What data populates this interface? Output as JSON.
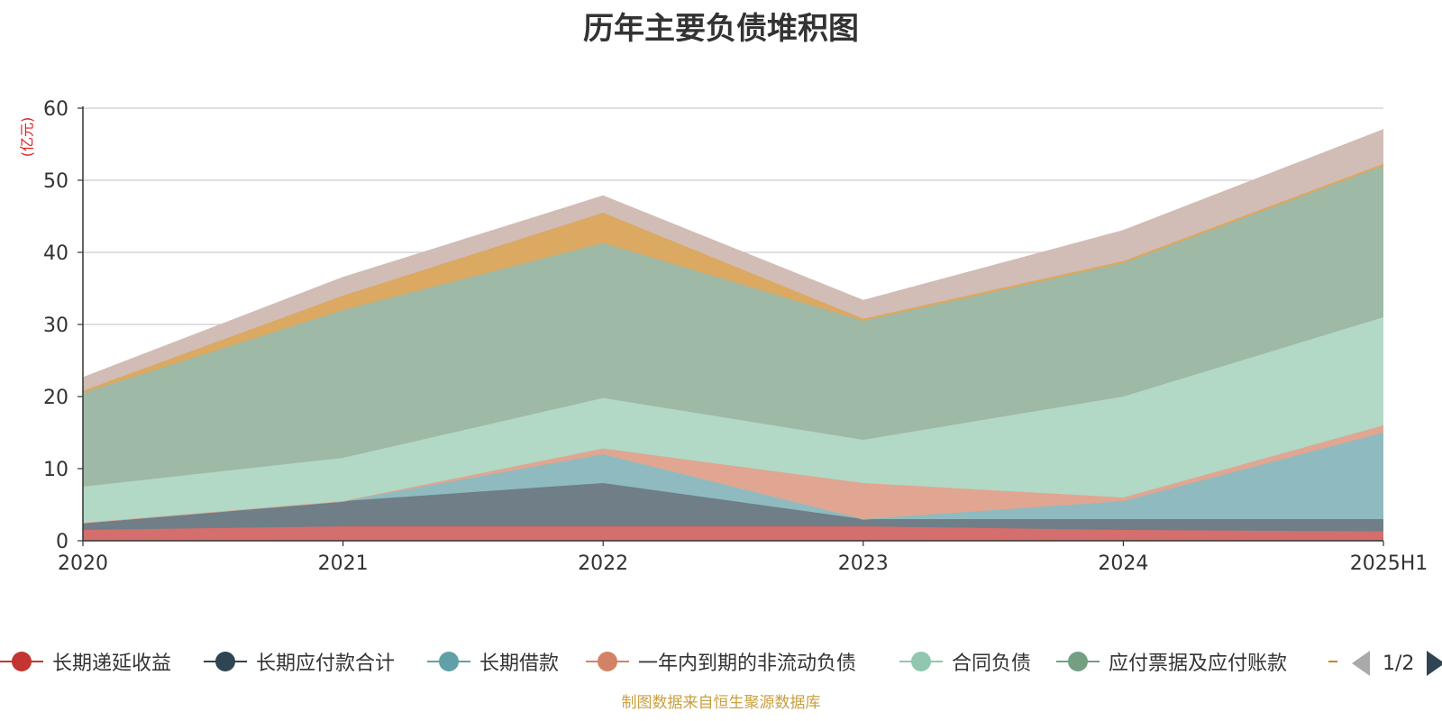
{
  "chart_data": {
    "type": "area",
    "title": "历年主要负债堆积图",
    "ylabel": "(亿元)",
    "ylim": [
      0,
      60
    ],
    "yticks": [
      "0",
      "10",
      "20",
      "30",
      "40",
      "50",
      "60"
    ],
    "categories": [
      "2020",
      "2021",
      "2022",
      "2023",
      "2024",
      "2025H1"
    ],
    "stacked": true,
    "series": [
      {
        "name": "长期递延收益",
        "color": "#c23531",
        "fill": "#d46f6d",
        "values": [
          1.5,
          2.0,
          2.0,
          2.0,
          1.5,
          1.3
        ]
      },
      {
        "name": "长期应付款合计",
        "color": "#2f4554",
        "fill": "#6f7e87",
        "values": [
          1.0,
          3.5,
          6.0,
          1.0,
          1.5,
          1.7
        ]
      },
      {
        "name": "长期借款",
        "color": "#61a0a8",
        "fill": "#8fbbc0",
        "values": [
          0.0,
          0.0,
          4.0,
          0.0,
          2.5,
          12.0
        ]
      },
      {
        "name": "一年内到期的非流动负债",
        "color": "#d48265",
        "fill": "#e0a691",
        "values": [
          0.0,
          0.0,
          0.8,
          5.0,
          0.5,
          1.0
        ]
      },
      {
        "name": "合同负债",
        "color": "#91c7ae",
        "fill": "#b2d8c6",
        "values": [
          5.0,
          6.0,
          7.0,
          6.0,
          14.0,
          15.0
        ]
      },
      {
        "name": "应付票据及应付账款",
        "color": "#749f83",
        "fill": "#9eb9a6",
        "values": [
          13.0,
          20.5,
          21.5,
          16.5,
          18.5,
          21.0
        ]
      },
      {
        "name": "",
        "color": "#ca8622",
        "fill": "#dba962",
        "values": [
          0.3,
          2.0,
          4.2,
          0.3,
          0.3,
          0.3
        ]
      },
      {
        "name": "",
        "color": "#bda29a",
        "fill": "#d1bcb6",
        "values": [
          1.8,
          2.5,
          2.3,
          2.5,
          4.2,
          4.7
        ]
      }
    ]
  },
  "legend": {
    "visible_items": [
      {
        "name": "长期递延收益",
        "color": "#c23531"
      },
      {
        "name": "长期应付款合计",
        "color": "#2f4554"
      },
      {
        "name": "长期借款",
        "color": "#61a0a8"
      },
      {
        "name": "一年内到期的非流动负债",
        "color": "#d48265"
      },
      {
        "name": "合同负债",
        "color": "#91c7ae"
      },
      {
        "name": "应付票据及应付账款",
        "color": "#749f83"
      }
    ],
    "truncated_color": "#ca8622",
    "page": "1/2"
  },
  "footer": "制图数据来自恒生聚源数据库"
}
